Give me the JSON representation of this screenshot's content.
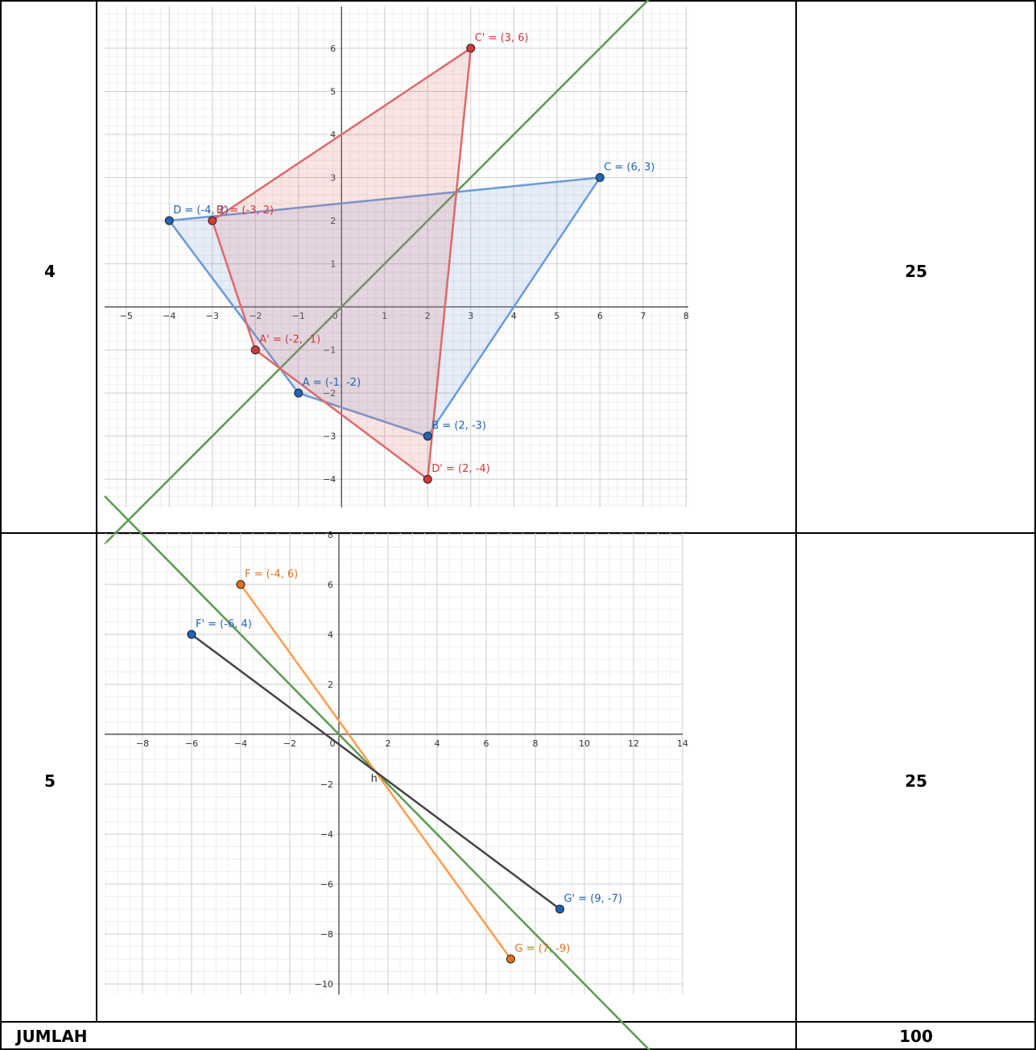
{
  "table": {
    "rows": [
      {
        "no": "4",
        "score": "25",
        "graph": {
          "xlim": [
            -5.5,
            8.05
          ],
          "ylim": [
            -4.65,
            6.97
          ],
          "minor_step": 0.2,
          "xticks": [
            {
              "value": -5,
              "label": "−5"
            },
            {
              "value": -4,
              "label": "−4"
            },
            {
              "value": -3,
              "label": "−3"
            },
            {
              "value": -2,
              "label": "−2"
            },
            {
              "value": -1,
              "label": "−1"
            },
            1,
            2,
            3,
            4,
            5,
            6,
            7,
            8
          ],
          "yticks": [
            {
              "value": -4,
              "label": "−4"
            },
            {
              "value": -3,
              "label": "−3"
            },
            {
              "value": -2,
              "label": "−2"
            },
            {
              "value": -1,
              "label": "−1"
            },
            1,
            2,
            3,
            4,
            5,
            6
          ],
          "origin_label": "0",
          "lines": [
            {
              "slope": 1,
              "intercept": 0,
              "color": "#5b9a50"
            }
          ],
          "polygons": [
            {
              "closed": true,
              "fill": true,
              "color": "#6a9ad8",
              "point_color": "#1f64b8",
              "label_color": "#1f64b8",
              "points": [
                {
                  "label": "D = (-4, 2)",
                  "x": -4,
                  "y": 2
                },
                {
                  "label": "A = (-1, -2)",
                  "x": -1,
                  "y": -2
                },
                {
                  "label": "B = (2, -3)",
                  "x": 2,
                  "y": -3
                },
                {
                  "label": "C = (6, 3)",
                  "x": 6,
                  "y": 3
                }
              ]
            },
            {
              "closed": true,
              "fill": true,
              "color": "#e06868",
              "point_color": "#d23a3a",
              "label_color": "#d23a3a",
              "points": [
                {
                  "label": "B' = (-3, 2)",
                  "x": -3,
                  "y": 2
                },
                {
                  "label": "A' = (-2, -1)",
                  "x": -2,
                  "y": -1
                },
                {
                  "label": "D' = (2, -4)",
                  "x": 2,
                  "y": -4
                },
                {
                  "label": "C' = (3, 6)",
                  "x": 3,
                  "y": 6
                }
              ]
            }
          ],
          "annotations": []
        }
      },
      {
        "no": "5",
        "score": "25",
        "graph": {
          "xlim": [
            -9.54,
            14.0
          ],
          "ylim": [
            -10.42,
            8.06
          ],
          "minor_step": 0.5,
          "xticks": [
            {
              "value": -8,
              "label": "−8"
            },
            {
              "value": -6,
              "label": "−6"
            },
            {
              "value": -4,
              "label": "−4"
            },
            {
              "value": -2,
              "label": "−2"
            },
            2,
            4,
            6,
            8,
            10,
            12,
            14
          ],
          "yticks": [
            {
              "value": -10,
              "label": "−10"
            },
            {
              "value": -8,
              "label": "−8"
            },
            {
              "value": -6,
              "label": "−6"
            },
            {
              "value": -4,
              "label": "−4"
            },
            {
              "value": -2,
              "label": "−2"
            },
            2,
            4,
            6,
            8
          ],
          "origin_label": "0",
          "lines": [
            {
              "slope": -1,
              "intercept": 0,
              "color": "#5b9a50"
            }
          ],
          "polygons": [
            {
              "closed": false,
              "fill": false,
              "color": "#ff9d4d",
              "point_color": "#e0701a",
              "label_color": "#e0701a",
              "points": [
                {
                  "label": "F = (-4, 6)",
                  "x": -4,
                  "y": 6
                },
                {
                  "label": "G = (7, -9)",
                  "x": 7,
                  "y": -9
                }
              ]
            },
            {
              "closed": false,
              "fill": false,
              "color": "#444444",
              "point_color": "#1f64b8",
              "label_color": "#1f64b8",
              "points": [
                {
                  "label": "F' = (-6, 4)",
                  "x": -6,
                  "y": 4
                },
                {
                  "label": "G' = (9, -7)",
                  "x": 9,
                  "y": -7
                }
              ]
            }
          ],
          "annotations": [
            {
              "text": "h",
              "x": 1.3,
              "y": -1.9,
              "color": "#333333"
            }
          ]
        }
      }
    ],
    "total": {
      "label": "JUMLAH",
      "score": "100"
    }
  }
}
